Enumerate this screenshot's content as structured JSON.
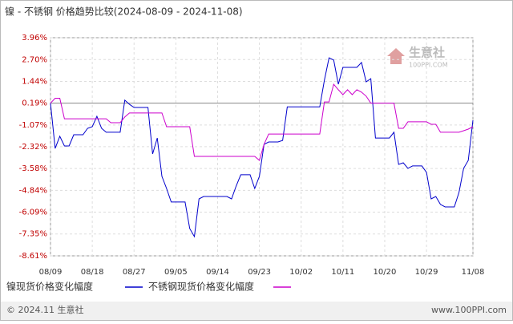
{
  "chart_data": {
    "type": "line",
    "title": "镍 - 不锈钢 价格趋势比较(2024-08-09 - 2024-11-08)",
    "categories": [
      "08/09",
      null,
      null,
      null,
      null,
      null,
      null,
      null,
      null,
      "08/18",
      null,
      null,
      null,
      null,
      null,
      null,
      null,
      null,
      "08/27",
      null,
      null,
      null,
      null,
      null,
      null,
      null,
      null,
      "09/05",
      null,
      null,
      null,
      null,
      null,
      null,
      null,
      null,
      "09/14",
      null,
      null,
      null,
      null,
      null,
      null,
      null,
      null,
      "09/23",
      null,
      null,
      null,
      null,
      null,
      null,
      null,
      null,
      "10/02",
      null,
      null,
      null,
      null,
      null,
      null,
      null,
      null,
      "10/11",
      null,
      null,
      null,
      null,
      null,
      null,
      null,
      null,
      "10/20",
      null,
      null,
      null,
      null,
      null,
      null,
      null,
      null,
      "10/29",
      null,
      null,
      null,
      null,
      null,
      null,
      null,
      null,
      null,
      "11/08"
    ],
    "series": [
      {
        "name": "镍现货价格变化幅度",
        "color": "#0000cc",
        "values": [
          0.19,
          -2.42,
          -1.72,
          -2.28,
          -2.28,
          -1.63,
          -1.63,
          -1.63,
          -1.26,
          -1.17,
          -0.57,
          -1.26,
          -1.49,
          -1.49,
          -1.49,
          -1.49,
          0.36,
          0.12,
          -0.06,
          -0.06,
          -0.06,
          -0.06,
          -2.74,
          -1.82,
          -4.03,
          -4.73,
          -5.51,
          -5.51,
          -5.51,
          -5.51,
          -7.04,
          -7.5,
          -5.33,
          -5.19,
          -5.19,
          -5.19,
          -5.19,
          -5.19,
          -5.19,
          -5.33,
          -4.59,
          -3.94,
          -3.94,
          -3.94,
          -4.73,
          -4.03,
          -2.19,
          -2.05,
          -2.05,
          -2.05,
          -1.96,
          -0.03,
          -0.03,
          -0.03,
          -0.03,
          -0.03,
          -0.03,
          -0.03,
          -0.03,
          1.51,
          2.8,
          2.67,
          1.28,
          2.25,
          2.25,
          2.25,
          2.25,
          2.53,
          1.42,
          1.6,
          -1.82,
          -1.82,
          -1.82,
          -1.82,
          -1.49,
          -3.34,
          -3.25,
          -3.57,
          -3.43,
          -3.43,
          -3.43,
          -3.8,
          -5.33,
          -5.19,
          -5.65,
          -5.79,
          -5.79,
          -5.79,
          -4.96,
          -3.57,
          -3.11,
          -0.8
        ]
      },
      {
        "name": "不锈钢现货价格变化幅度",
        "color": "#cc00cc",
        "values": [
          0.19,
          0.47,
          0.47,
          -0.71,
          -0.71,
          -0.71,
          -0.71,
          -0.71,
          -0.71,
          -0.71,
          -0.71,
          -0.71,
          -0.71,
          -0.94,
          -0.94,
          -0.94,
          -0.61,
          -0.38,
          -0.38,
          -0.38,
          -0.38,
          -0.38,
          -0.38,
          -0.38,
          -0.38,
          -1.17,
          -1.17,
          -1.17,
          -1.17,
          -1.17,
          -1.17,
          -2.88,
          -2.88,
          -2.88,
          -2.88,
          -2.88,
          -2.88,
          -2.88,
          -2.88,
          -2.88,
          -2.88,
          -2.88,
          -2.88,
          -2.88,
          -2.88,
          -3.11,
          -2.19,
          -1.59,
          -1.59,
          -1.59,
          -1.59,
          -1.59,
          -1.59,
          -1.59,
          -1.59,
          -1.59,
          -1.59,
          -1.59,
          -1.59,
          0.26,
          0.26,
          1.28,
          0.96,
          0.68,
          0.96,
          0.68,
          0.96,
          0.82,
          0.59,
          0.19,
          0.19,
          0.19,
          0.19,
          0.19,
          0.19,
          -1.26,
          -1.26,
          -0.89,
          -0.89,
          -0.89,
          -0.89,
          -0.89,
          -1.03,
          -1.03,
          -1.49,
          -1.49,
          -1.49,
          -1.49,
          -1.49,
          -1.4,
          -1.31,
          -1.17
        ]
      }
    ],
    "ylim": [
      -8.61,
      3.96
    ],
    "yticks": [
      {
        "value": 3.96,
        "label": "3.96%"
      },
      {
        "value": 2.7,
        "label": "2.70%"
      },
      {
        "value": 1.44,
        "label": "1.44%"
      },
      {
        "value": 0.19,
        "label": "0.19%"
      },
      {
        "value": -1.07,
        "label": "-1.07%"
      },
      {
        "value": -2.32,
        "label": "-2.32%"
      },
      {
        "value": -3.58,
        "label": "-3.58%"
      },
      {
        "value": -4.84,
        "label": "-4.84%"
      },
      {
        "value": -6.09,
        "label": "-6.09%"
      },
      {
        "value": -7.35,
        "label": "-7.35%"
      },
      {
        "value": -8.61,
        "label": "-8.61%"
      }
    ],
    "grid": true,
    "watermark": {
      "name": "生意社",
      "url": "100PPI.COM"
    },
    "footer": {
      "left": "© 2024.11 生意社",
      "right": "www.100PPI.com"
    }
  }
}
